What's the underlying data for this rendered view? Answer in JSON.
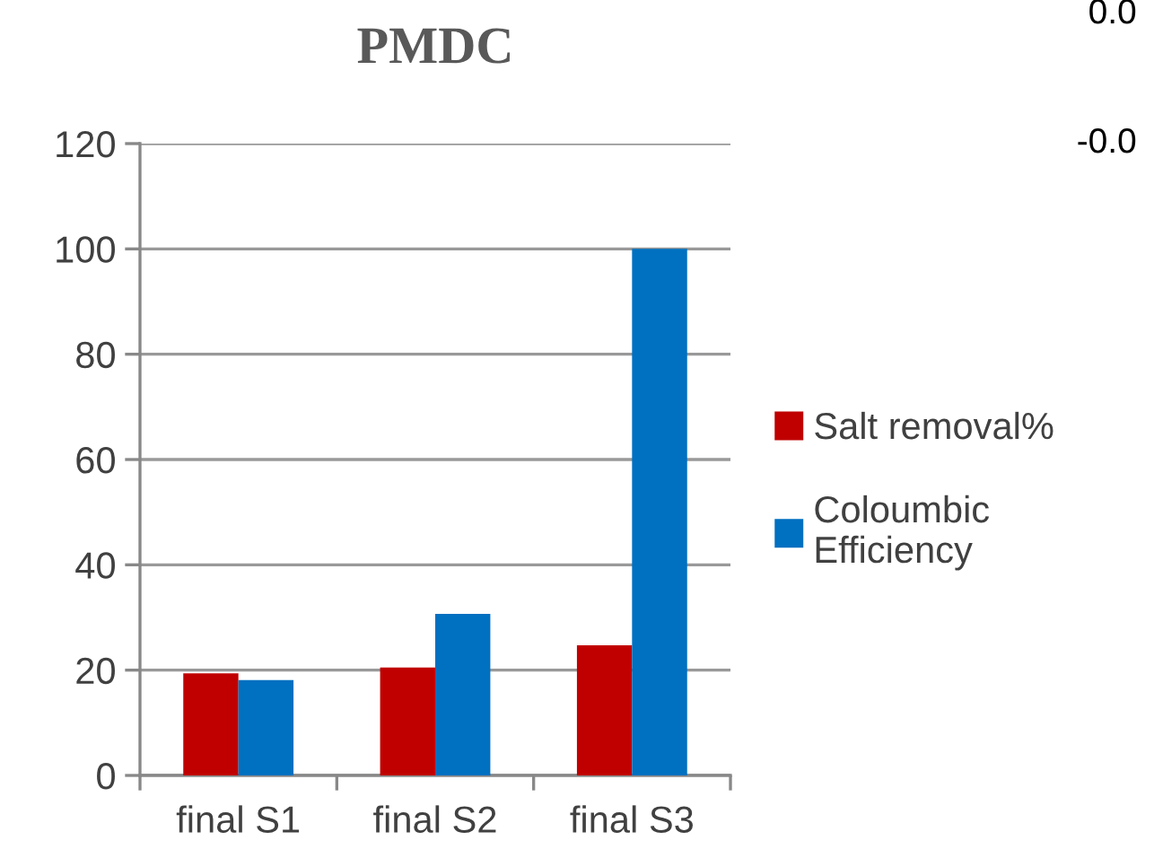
{
  "chart_data": {
    "type": "bar",
    "title": "PMDC",
    "categories": [
      "final S1",
      "final S2",
      "final S3"
    ],
    "series": [
      {
        "name": "Salt removal%",
        "color": "#c00000",
        "values": [
          19.4,
          20.5,
          24.7
        ]
      },
      {
        "name": "Coloumbic Efficiency",
        "color": "#0070c0",
        "values": [
          18.1,
          30.7,
          100
        ]
      }
    ],
    "ylim": [
      0,
      120
    ],
    "yticks": [
      0,
      20,
      40,
      60,
      80,
      100,
      120
    ],
    "grid": "y",
    "legend": "right",
    "annotations": [
      "0.0",
      "-0.0"
    ]
  }
}
